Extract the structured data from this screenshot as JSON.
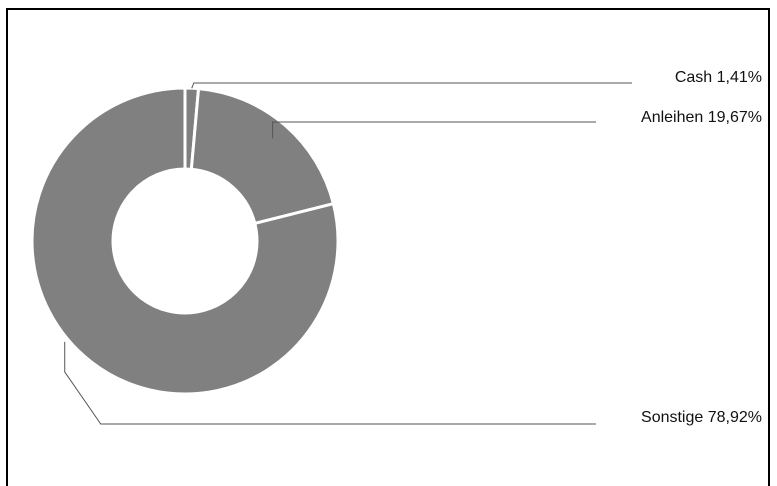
{
  "chart_data": {
    "type": "pie",
    "style": "donut",
    "title": "",
    "slices": [
      {
        "label": "Cash",
        "value": 1.41,
        "value_label": "1,41%"
      },
      {
        "label": "Anleihen",
        "value": 19.67,
        "value_label": "19,67%"
      },
      {
        "label": "Sonstige",
        "value": 78.92,
        "value_label": "78,92%"
      }
    ],
    "slice_color": "#808080",
    "separator_color": "#ffffff",
    "legend": "none",
    "labels_position": "right"
  }
}
